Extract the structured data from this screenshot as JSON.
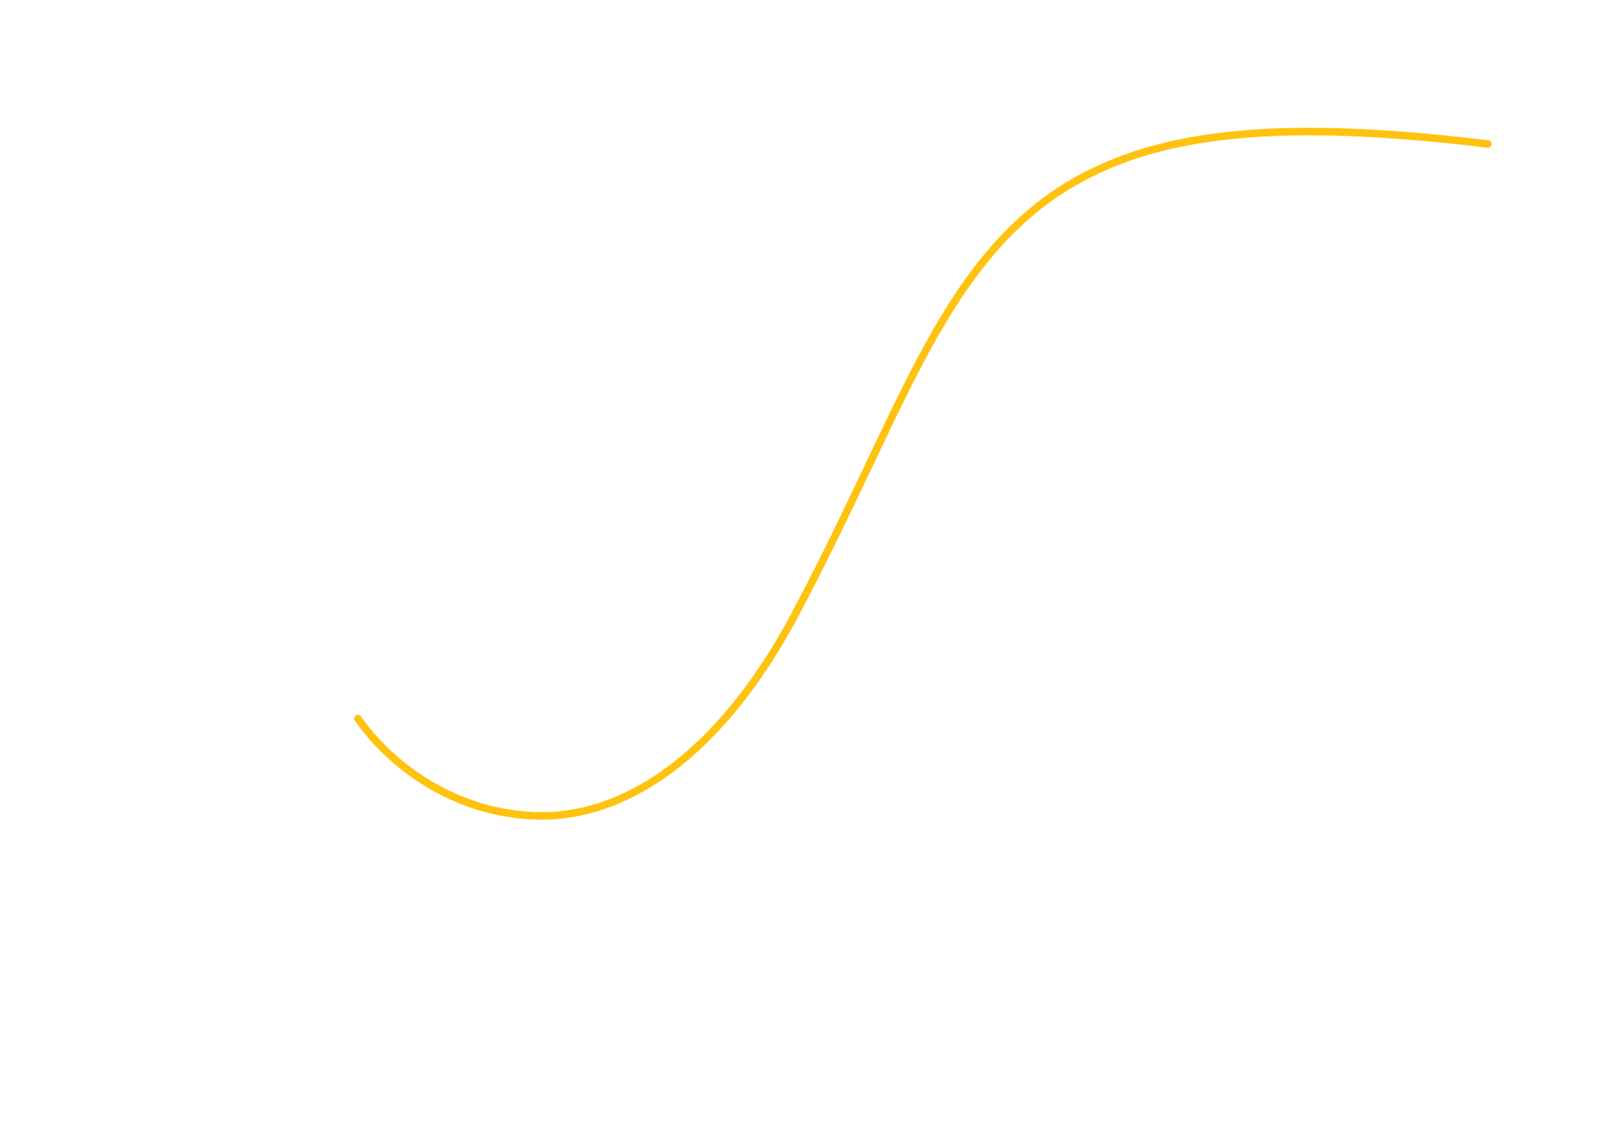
{
  "canvas": {
    "background_color": "#ffffff"
  },
  "curve": {
    "shape": "s-curve",
    "stroke_color": "#ffc20e"
  }
}
